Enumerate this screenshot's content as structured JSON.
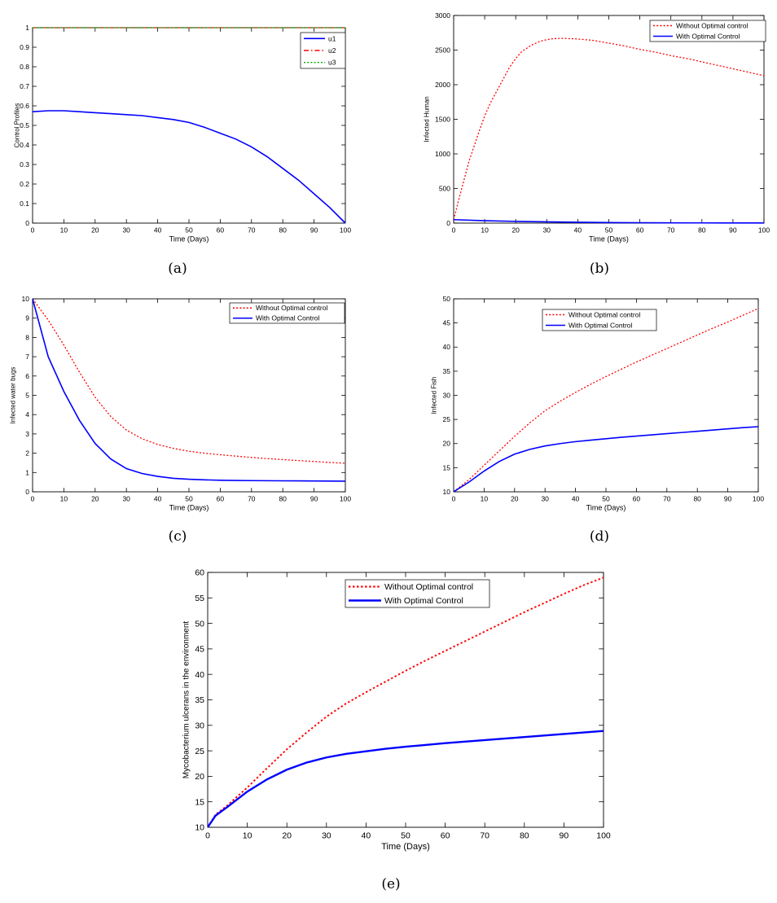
{
  "chart_data": [
    {
      "type": "line",
      "caption": "(a)",
      "xlabel": "Time (Days)",
      "ylabel": "Control Profiles",
      "xlim": [
        0,
        100
      ],
      "ylim": [
        0,
        1
      ],
      "xticks": [
        0,
        10,
        20,
        30,
        40,
        50,
        60,
        70,
        80,
        90,
        100
      ],
      "yticks": [
        0,
        0.1,
        0.2,
        0.3,
        0.4,
        0.5,
        0.6,
        0.7,
        0.8,
        0.9,
        1
      ],
      "grid": false,
      "legend_position": "top-right",
      "series": [
        {
          "name": "u1",
          "color": "#0000ff",
          "style": "solid",
          "x": [
            0,
            5,
            10,
            15,
            20,
            25,
            30,
            35,
            40,
            45,
            50,
            55,
            60,
            65,
            70,
            75,
            80,
            85,
            90,
            95,
            100
          ],
          "y": [
            0.57,
            0.575,
            0.575,
            0.57,
            0.565,
            0.56,
            0.555,
            0.55,
            0.54,
            0.53,
            0.515,
            0.49,
            0.46,
            0.43,
            0.39,
            0.34,
            0.28,
            0.22,
            0.15,
            0.08,
            0.0
          ]
        },
        {
          "name": "u2",
          "color": "#ff0000",
          "style": "dashdot",
          "x": [
            0,
            100
          ],
          "y": [
            1,
            1
          ]
        },
        {
          "name": "u3",
          "color": "#00aa00",
          "style": "dotted",
          "x": [
            0,
            100
          ],
          "y": [
            1,
            1
          ]
        }
      ]
    },
    {
      "type": "line",
      "caption": "(b)",
      "xlabel": "Time (Days)",
      "ylabel": "Infected Human",
      "xlim": [
        0,
        100
      ],
      "ylim": [
        0,
        3000
      ],
      "xticks": [
        0,
        10,
        20,
        30,
        40,
        50,
        60,
        70,
        80,
        90,
        100
      ],
      "yticks": [
        0,
        500,
        1000,
        1500,
        2000,
        2500,
        3000
      ],
      "grid": false,
      "legend_position": "top-right",
      "series": [
        {
          "name": "Without Optimal control",
          "color": "#ff0000",
          "style": "dotted",
          "x": [
            0,
            2,
            5,
            8,
            10,
            12,
            15,
            18,
            20,
            22,
            25,
            28,
            30,
            32,
            35,
            40,
            45,
            50,
            55,
            60,
            65,
            70,
            75,
            80,
            85,
            90,
            95,
            100
          ],
          "y": [
            50,
            400,
            900,
            1300,
            1550,
            1750,
            2000,
            2250,
            2380,
            2480,
            2570,
            2630,
            2650,
            2665,
            2670,
            2660,
            2640,
            2600,
            2560,
            2510,
            2470,
            2420,
            2380,
            2330,
            2280,
            2230,
            2180,
            2130
          ]
        },
        {
          "name": "With Optimal Control",
          "color": "#0000ff",
          "style": "solid",
          "x": [
            0,
            10,
            20,
            30,
            40,
            50,
            60,
            70,
            80,
            90,
            100
          ],
          "y": [
            50,
            35,
            25,
            18,
            12,
            8,
            6,
            4,
            3,
            2,
            2
          ]
        }
      ]
    },
    {
      "type": "line",
      "caption": "(c)",
      "xlabel": "Time (Days)",
      "ylabel": "Infected water bugs",
      "xlim": [
        0,
        100
      ],
      "ylim": [
        0,
        10
      ],
      "xticks": [
        0,
        10,
        20,
        30,
        40,
        50,
        60,
        70,
        80,
        90,
        100
      ],
      "yticks": [
        0,
        1,
        2,
        3,
        4,
        5,
        6,
        7,
        8,
        9,
        10
      ],
      "grid": false,
      "legend_position": "top-right",
      "series": [
        {
          "name": "Without Optimal control",
          "color": "#ff0000",
          "style": "dotted",
          "x": [
            0,
            5,
            10,
            15,
            20,
            25,
            30,
            35,
            40,
            45,
            50,
            55,
            60,
            65,
            70,
            75,
            80,
            85,
            90,
            95,
            100
          ],
          "y": [
            10,
            8.9,
            7.6,
            6.2,
            4.9,
            3.9,
            3.2,
            2.75,
            2.45,
            2.25,
            2.1,
            2.0,
            1.92,
            1.85,
            1.78,
            1.72,
            1.67,
            1.62,
            1.57,
            1.52,
            1.48
          ]
        },
        {
          "name": "With Optimal Control",
          "color": "#0000ff",
          "style": "solid",
          "x": [
            0,
            5,
            10,
            15,
            20,
            25,
            30,
            35,
            40,
            45,
            50,
            55,
            60,
            65,
            70,
            75,
            80,
            85,
            90,
            95,
            100
          ],
          "y": [
            10,
            7.0,
            5.2,
            3.7,
            2.5,
            1.7,
            1.2,
            0.95,
            0.8,
            0.7,
            0.65,
            0.62,
            0.6,
            0.59,
            0.58,
            0.575,
            0.57,
            0.565,
            0.56,
            0.555,
            0.55
          ]
        }
      ]
    },
    {
      "type": "line",
      "caption": "(d)",
      "xlabel": "Time (Days)",
      "ylabel": "Infected Fish",
      "xlim": [
        0,
        100
      ],
      "ylim": [
        10,
        50
      ],
      "xticks": [
        0,
        10,
        20,
        30,
        40,
        50,
        60,
        70,
        80,
        90,
        100
      ],
      "yticks": [
        10,
        15,
        20,
        25,
        30,
        35,
        40,
        45,
        50
      ],
      "grid": false,
      "legend_position": "top-center",
      "series": [
        {
          "name": "Without Optimal control",
          "color": "#ff0000",
          "style": "dotted",
          "x": [
            0,
            5,
            10,
            15,
            20,
            25,
            30,
            35,
            40,
            45,
            50,
            55,
            60,
            65,
            70,
            75,
            80,
            85,
            90,
            95,
            100
          ],
          "y": [
            10,
            12.5,
            15.5,
            18.5,
            21.5,
            24.3,
            26.8,
            28.8,
            30.6,
            32.3,
            33.9,
            35.4,
            36.9,
            38.3,
            39.7,
            41.1,
            42.5,
            43.9,
            45.2,
            46.6,
            48
          ]
        },
        {
          "name": "With Optimal Control",
          "color": "#0000ff",
          "style": "solid",
          "x": [
            0,
            5,
            10,
            15,
            20,
            25,
            30,
            35,
            40,
            45,
            50,
            55,
            60,
            65,
            70,
            75,
            80,
            85,
            90,
            95,
            100
          ],
          "y": [
            10,
            12.0,
            14.3,
            16.3,
            17.8,
            18.8,
            19.5,
            20.0,
            20.4,
            20.7,
            21.0,
            21.3,
            21.55,
            21.8,
            22.05,
            22.3,
            22.55,
            22.8,
            23.05,
            23.3,
            23.5
          ]
        }
      ]
    },
    {
      "type": "line",
      "caption": "(e)",
      "xlabel": "Time (Days)",
      "ylabel": "Mycobacterium ulcerans in the environment",
      "xlim": [
        0,
        100
      ],
      "ylim": [
        10,
        60
      ],
      "xticks": [
        0,
        10,
        20,
        30,
        40,
        50,
        60,
        70,
        80,
        90,
        100
      ],
      "yticks": [
        10,
        15,
        20,
        25,
        30,
        35,
        40,
        45,
        50,
        55,
        60
      ],
      "grid": false,
      "legend_position": "top-center",
      "series": [
        {
          "name": "Without Optimal control",
          "color": "#ff0000",
          "style": "dotted",
          "x": [
            0,
            2,
            5,
            10,
            15,
            20,
            25,
            30,
            35,
            40,
            45,
            50,
            55,
            60,
            65,
            70,
            75,
            80,
            85,
            90,
            95,
            100
          ],
          "y": [
            10,
            12.5,
            14.3,
            17.8,
            21.6,
            25.3,
            28.6,
            31.7,
            34.3,
            36.5,
            38.6,
            40.7,
            42.7,
            44.6,
            46.5,
            48.4,
            50.3,
            52.2,
            54.0,
            55.8,
            57.5,
            59
          ]
        },
        {
          "name": "With Optimal Control",
          "color": "#0000ff",
          "style": "solid",
          "x": [
            0,
            2,
            5,
            10,
            15,
            20,
            25,
            30,
            35,
            40,
            45,
            50,
            55,
            60,
            65,
            70,
            75,
            80,
            85,
            90,
            95,
            100
          ],
          "y": [
            10,
            12.3,
            14.0,
            17.0,
            19.4,
            21.3,
            22.7,
            23.7,
            24.4,
            24.9,
            25.4,
            25.8,
            26.15,
            26.5,
            26.8,
            27.1,
            27.4,
            27.7,
            28.0,
            28.3,
            28.6,
            28.9
          ]
        }
      ]
    }
  ]
}
